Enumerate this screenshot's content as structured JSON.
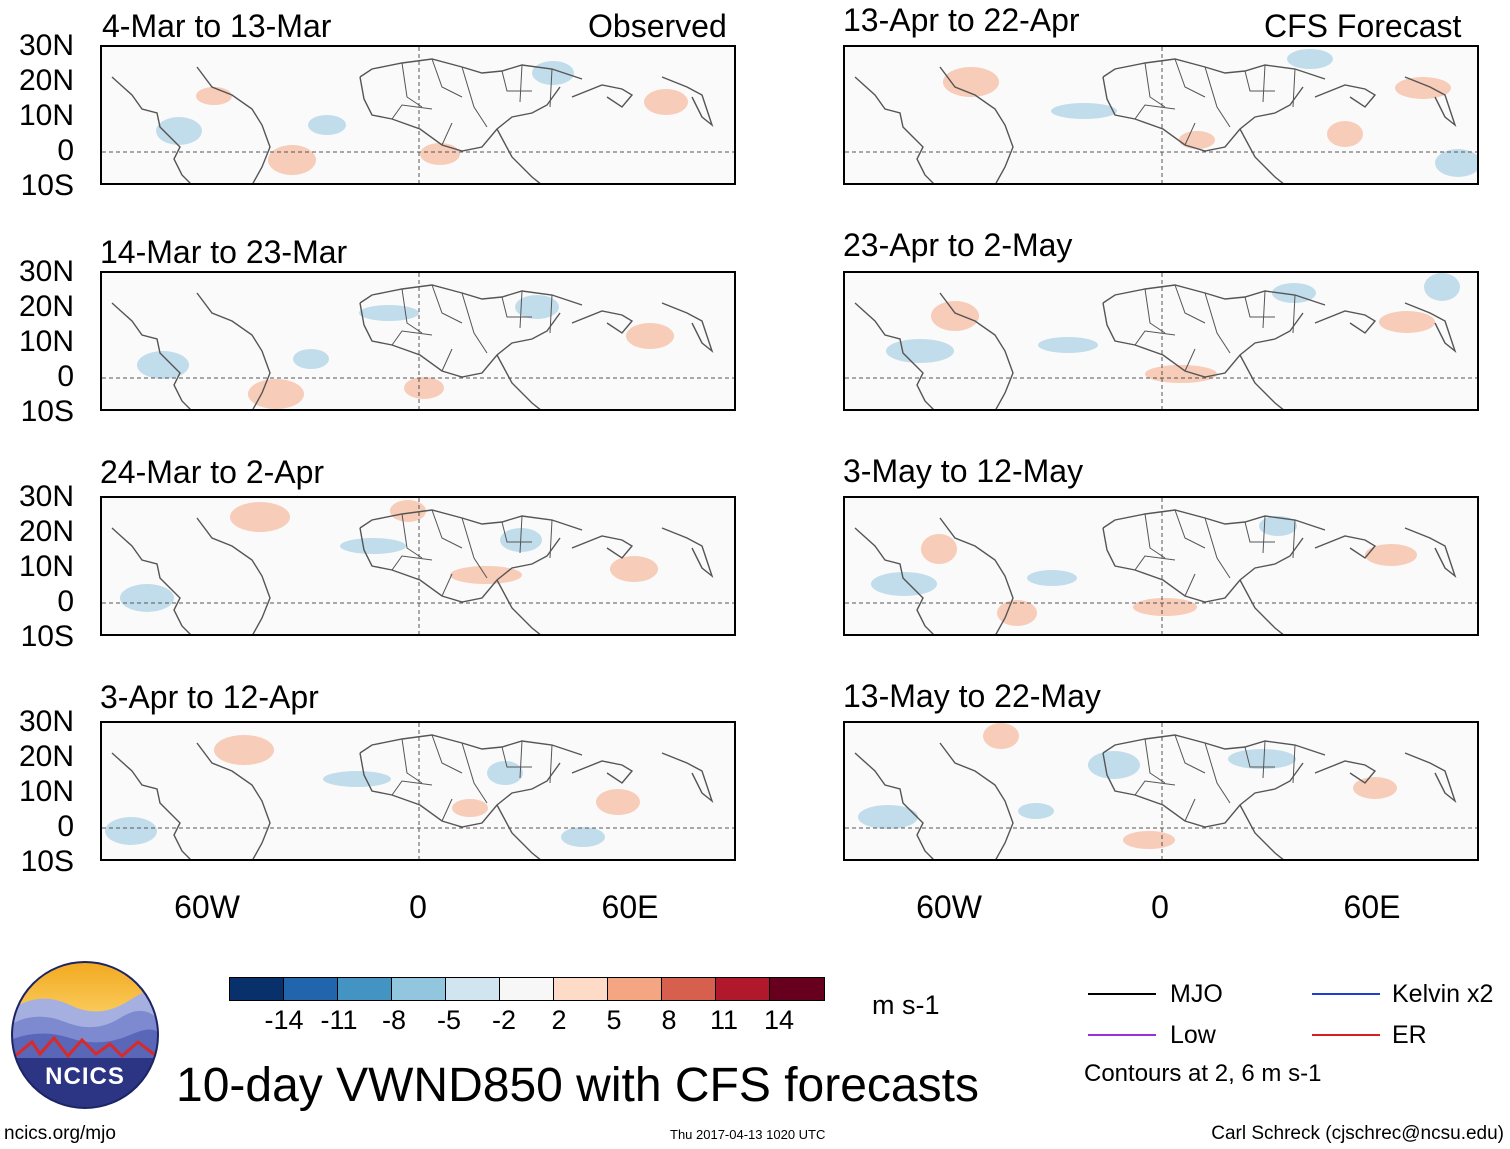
{
  "panels": [
    {
      "title": "4-Mar to 13-Mar",
      "tag": "Observed"
    },
    {
      "title": "14-Mar to 23-Mar",
      "tag": ""
    },
    {
      "title": "24-Mar to 2-Apr",
      "tag": ""
    },
    {
      "title": "3-Apr to 12-Apr",
      "tag": ""
    },
    {
      "title": "13-Apr to 22-Apr",
      "tag": "CFS Forecast"
    },
    {
      "title": "23-Apr to 2-May",
      "tag": ""
    },
    {
      "title": "3-May to 12-May",
      "tag": ""
    },
    {
      "title": "13-May to 22-May",
      "tag": ""
    }
  ],
  "lat_labels": [
    "30N",
    "20N",
    "10N",
    "0",
    "10S"
  ],
  "lon_labels": [
    "60W",
    "0",
    "60E"
  ],
  "colorbar": {
    "colors": [
      "#08306b",
      "#2166ac",
      "#4393c3",
      "#92c5de",
      "#d1e5f0",
      "#f7f7f7",
      "#fddbc7",
      "#f4a582",
      "#d6604d",
      "#b2182b",
      "#67001f"
    ],
    "labels": [
      "-14",
      "-11",
      "-8",
      "-5",
      "-2",
      "2",
      "5",
      "8",
      "11",
      "14"
    ],
    "units": "m s-1"
  },
  "title": "10-day VWND850 with CFS forecasts",
  "legend": [
    {
      "label": "MJO",
      "color": "#000000"
    },
    {
      "label": "Kelvin x2",
      "color": "#1f3fd1"
    },
    {
      "label": "Low",
      "color": "#9b30d9"
    },
    {
      "label": "ER",
      "color": "#d62020"
    }
  ],
  "contour_note": "Contours at 2, 6 m s-1",
  "logo_text": "NCICS",
  "footer": {
    "left": "ncics.org/mjo",
    "middle": "Thu 2017-04-13 1020 UTC",
    "right": "Carl Schreck (cjschrec@ncsu.edu)"
  },
  "colors": {
    "blue_anom": "#92c5de",
    "red_anom": "#f4a582",
    "coast": "#555555"
  }
}
